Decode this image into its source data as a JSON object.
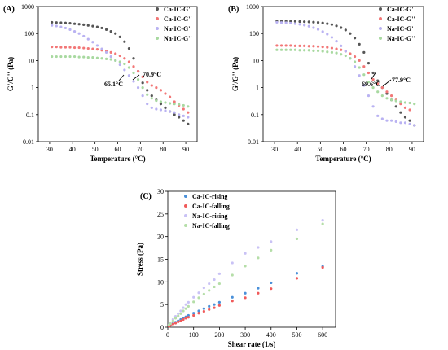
{
  "chart_data": [
    {
      "panel_label": "(A)",
      "type": "scatter",
      "xlabel": "Temperature (°C)",
      "ylabel": "G'/G'' (Pa)",
      "yscale": "log",
      "xlim": [
        25,
        95
      ],
      "ylim": [
        0.01,
        1000
      ],
      "xticks": [
        "30",
        "40",
        "50",
        "60",
        "70",
        "80",
        "90"
      ],
      "yticks": [
        "0.01",
        "0.1",
        "1",
        "10",
        "100",
        "1000"
      ],
      "legend_position": "top-right",
      "annotations": [
        {
          "text": "70.9°C",
          "x": 71,
          "y": 2.2
        },
        {
          "text": "65.1°C",
          "x": 65,
          "y": 1.3
        }
      ],
      "series": [
        {
          "name": "Ca-IC-G'",
          "color": "#555555",
          "x": [
            31,
            33,
            35,
            37,
            39,
            41,
            43,
            45,
            47,
            49,
            51,
            53,
            55,
            57,
            59,
            61,
            63,
            65,
            67,
            69,
            71,
            73,
            75,
            77,
            79,
            81,
            83,
            85,
            87,
            89,
            91
          ],
          "y": [
            260,
            255,
            250,
            245,
            240,
            230,
            222,
            212,
            200,
            188,
            175,
            160,
            140,
            120,
            100,
            75,
            50,
            28,
            12,
            4,
            1.5,
            0.8,
            0.5,
            0.35,
            0.25,
            0.18,
            0.13,
            0.1,
            0.08,
            0.06,
            0.045
          ]
        },
        {
          "name": "Ca-IC-G''",
          "color": "#f27777",
          "x": [
            31,
            33,
            35,
            37,
            39,
            41,
            43,
            45,
            47,
            49,
            51,
            53,
            55,
            57,
            59,
            61,
            63,
            65,
            67,
            69,
            71,
            73,
            75,
            77,
            79,
            81,
            83,
            85,
            87,
            89,
            91
          ],
          "y": [
            32,
            32,
            31,
            31,
            31,
            30,
            30,
            29,
            28,
            27,
            26,
            24,
            22,
            20,
            18,
            15,
            12,
            9,
            6,
            4,
            2.5,
            1.6,
            1.2,
            1.0,
            0.8,
            0.6,
            0.45,
            0.3,
            0.22,
            0.16,
            0.12
          ]
        },
        {
          "name": "Na-IC-G'",
          "color": "#b9b2f2",
          "x": [
            31,
            33,
            35,
            37,
            39,
            41,
            43,
            45,
            47,
            49,
            51,
            53,
            55,
            57,
            59,
            61,
            63,
            65,
            67,
            69,
            71,
            73,
            75,
            77,
            79,
            81,
            83,
            85,
            87,
            89,
            91
          ],
          "y": [
            200,
            190,
            175,
            160,
            140,
            120,
            100,
            80,
            62,
            48,
            36,
            27,
            20,
            14,
            10,
            7,
            4.5,
            2.8,
            1.7,
            1.0,
            0.5,
            0.25,
            0.18,
            0.16,
            0.15,
            0.14,
            0.13,
            0.12,
            0.1,
            0.09,
            0.08
          ]
        },
        {
          "name": "Na-IC-G''",
          "color": "#a8d9a0",
          "x": [
            31,
            33,
            35,
            37,
            39,
            41,
            43,
            45,
            47,
            49,
            51,
            53,
            55,
            57,
            59,
            61,
            63,
            65,
            67,
            69,
            71,
            73,
            75,
            77,
            79,
            81,
            83,
            85,
            87,
            89,
            91
          ],
          "y": [
            14,
            14,
            14,
            14,
            14,
            14,
            13.5,
            13.5,
            13,
            13,
            12.5,
            12,
            11.5,
            11,
            10,
            9,
            7.5,
            5.5,
            3.5,
            2,
            1.0,
            0.55,
            0.4,
            0.33,
            0.3,
            0.28,
            0.26,
            0.25,
            0.24,
            0.22,
            0.2
          ]
        }
      ]
    },
    {
      "panel_label": "(B)",
      "type": "scatter",
      "xlabel": "Temperature (°C)",
      "ylabel": "G'/G'' (Pa)",
      "yscale": "log",
      "xlim": [
        25,
        95
      ],
      "ylim": [
        0.01,
        1000
      ],
      "xticks": [
        "30",
        "40",
        "50",
        "60",
        "70",
        "80",
        "90"
      ],
      "yticks": [
        "0.01",
        "0.1",
        "1",
        "10",
        "100",
        "1000"
      ],
      "legend_position": "top-right",
      "annotations": [
        {
          "text": "69.6°C",
          "x": 69,
          "y": 2.0
        },
        {
          "text": "77.9°C",
          "x": 78,
          "y": 1.0
        }
      ],
      "series": [
        {
          "name": "Ca-IC-G'",
          "color": "#555555",
          "x": [
            31,
            33,
            35,
            37,
            39,
            41,
            43,
            45,
            47,
            49,
            51,
            53,
            55,
            57,
            59,
            61,
            63,
            65,
            67,
            69,
            71,
            73,
            75,
            77,
            79,
            81,
            83,
            85,
            87,
            89,
            91
          ],
          "y": [
            290,
            290,
            288,
            285,
            282,
            278,
            274,
            270,
            264,
            256,
            246,
            232,
            215,
            192,
            165,
            135,
            100,
            68,
            40,
            20,
            8,
            3.5,
            1.8,
            1.0,
            0.6,
            0.35,
            0.2,
            0.12,
            0.08,
            0.06,
            0.04
          ]
        },
        {
          "name": "Ca-IC-G''",
          "color": "#f27777",
          "x": [
            31,
            33,
            35,
            37,
            39,
            41,
            43,
            45,
            47,
            49,
            51,
            53,
            55,
            57,
            59,
            61,
            63,
            65,
            67,
            69,
            71,
            73,
            75,
            77,
            79,
            81,
            83,
            85,
            87,
            89
          ],
          "y": [
            36,
            36,
            36,
            36,
            35,
            35,
            35,
            34,
            34,
            33,
            32,
            31,
            29,
            27,
            25,
            22,
            18,
            14,
            10,
            6,
            3.5,
            2,
            1.4,
            1.0,
            0.7,
            0.5,
            0.35,
            0.25,
            0.18,
            0.15
          ]
        },
        {
          "name": "Na-IC-G'",
          "color": "#b9b2f2",
          "x": [
            31,
            33,
            35,
            37,
            39,
            41,
            43,
            45,
            47,
            49,
            51,
            53,
            55,
            57,
            59,
            61,
            63,
            65,
            67,
            69,
            71,
            73,
            75,
            77,
            79,
            81,
            83,
            85,
            87,
            89,
            91
          ],
          "y": [
            260,
            255,
            250,
            242,
            232,
            220,
            204,
            186,
            165,
            142,
            118,
            95,
            72,
            52,
            35,
            22,
            12,
            6,
            2.8,
            1.2,
            0.5,
            0.2,
            0.09,
            0.07,
            0.06,
            0.06,
            0.055,
            0.05,
            0.05,
            0.045,
            0.04
          ]
        },
        {
          "name": "Na-IC-G''",
          "color": "#a8d9a0",
          "x": [
            31,
            33,
            35,
            37,
            39,
            41,
            43,
            45,
            47,
            49,
            51,
            53,
            55,
            57,
            59,
            61,
            63,
            65,
            67,
            69,
            71,
            73,
            75,
            77,
            79,
            81,
            83,
            85,
            87,
            89,
            91
          ],
          "y": [
            25,
            25,
            25,
            25,
            25,
            24,
            24,
            24,
            23,
            23,
            22,
            21,
            20,
            19,
            17,
            15,
            12,
            9,
            5.5,
            3,
            1.6,
            1.0,
            0.7,
            0.5,
            0.4,
            0.35,
            0.32,
            0.3,
            0.28,
            0.27,
            0.25
          ]
        }
      ]
    },
    {
      "panel_label": "(C)",
      "type": "scatter",
      "xlabel": "Shear rate (1/s)",
      "ylabel": "Stress (Pa)",
      "yscale": "linear",
      "xlim": [
        0,
        650
      ],
      "ylim": [
        0,
        30
      ],
      "xticks": [
        "0",
        "100",
        "200",
        "300",
        "400",
        "500",
        "600"
      ],
      "yticks": [
        "0",
        "5",
        "10",
        "15",
        "20",
        "25",
        "30"
      ],
      "legend_position": "top-left",
      "series": [
        {
          "name": "Ca-IC-rising",
          "color": "#4a90d9",
          "x": [
            5,
            10,
            20,
            30,
            40,
            50,
            60,
            70,
            80,
            100,
            120,
            140,
            160,
            180,
            200,
            250,
            300,
            350,
            400,
            500,
            600
          ],
          "y": [
            0.3,
            0.5,
            0.8,
            1.1,
            1.4,
            1.7,
            2.0,
            2.3,
            2.6,
            3.1,
            3.6,
            4.1,
            4.6,
            5.0,
            5.5,
            6.6,
            7.5,
            8.6,
            9.8,
            11.9,
            13.4
          ]
        },
        {
          "name": "Ca-IC-falling",
          "color": "#f05a5a",
          "x": [
            5,
            10,
            20,
            30,
            40,
            50,
            60,
            70,
            80,
            100,
            120,
            140,
            160,
            180,
            200,
            250,
            300,
            350,
            400,
            500,
            600
          ],
          "y": [
            0.2,
            0.4,
            0.7,
            0.9,
            1.2,
            1.4,
            1.7,
            2.0,
            2.2,
            2.6,
            3.1,
            3.5,
            3.9,
            4.3,
            4.8,
            5.8,
            6.5,
            7.5,
            8.5,
            10.8,
            13.2
          ]
        },
        {
          "name": "Na-IC-rising",
          "color": "#c9c2f5",
          "x": [
            5,
            10,
            20,
            30,
            40,
            50,
            60,
            70,
            80,
            100,
            120,
            140,
            160,
            180,
            200,
            250,
            300,
            350,
            400,
            500,
            600
          ],
          "y": [
            0.6,
            1.0,
            1.7,
            2.4,
            3.0,
            3.6,
            4.3,
            5.0,
            5.5,
            6.6,
            7.6,
            8.7,
            9.6,
            10.5,
            11.8,
            14.2,
            16.3,
            17.6,
            18.9,
            21.5,
            23.6
          ]
        },
        {
          "name": "Na-IC-falling",
          "color": "#b5dea8",
          "x": [
            5,
            10,
            20,
            30,
            40,
            50,
            60,
            70,
            80,
            100,
            120,
            140,
            160,
            180,
            200,
            250,
            300,
            350,
            400,
            500,
            600
          ],
          "y": [
            0.5,
            0.8,
            1.4,
            2.0,
            2.5,
            3.0,
            3.6,
            4.1,
            4.6,
            5.6,
            6.5,
            7.3,
            8.1,
            8.9,
            9.6,
            11.5,
            13.5,
            15.3,
            17.0,
            19.5,
            22.8
          ]
        }
      ]
    }
  ]
}
